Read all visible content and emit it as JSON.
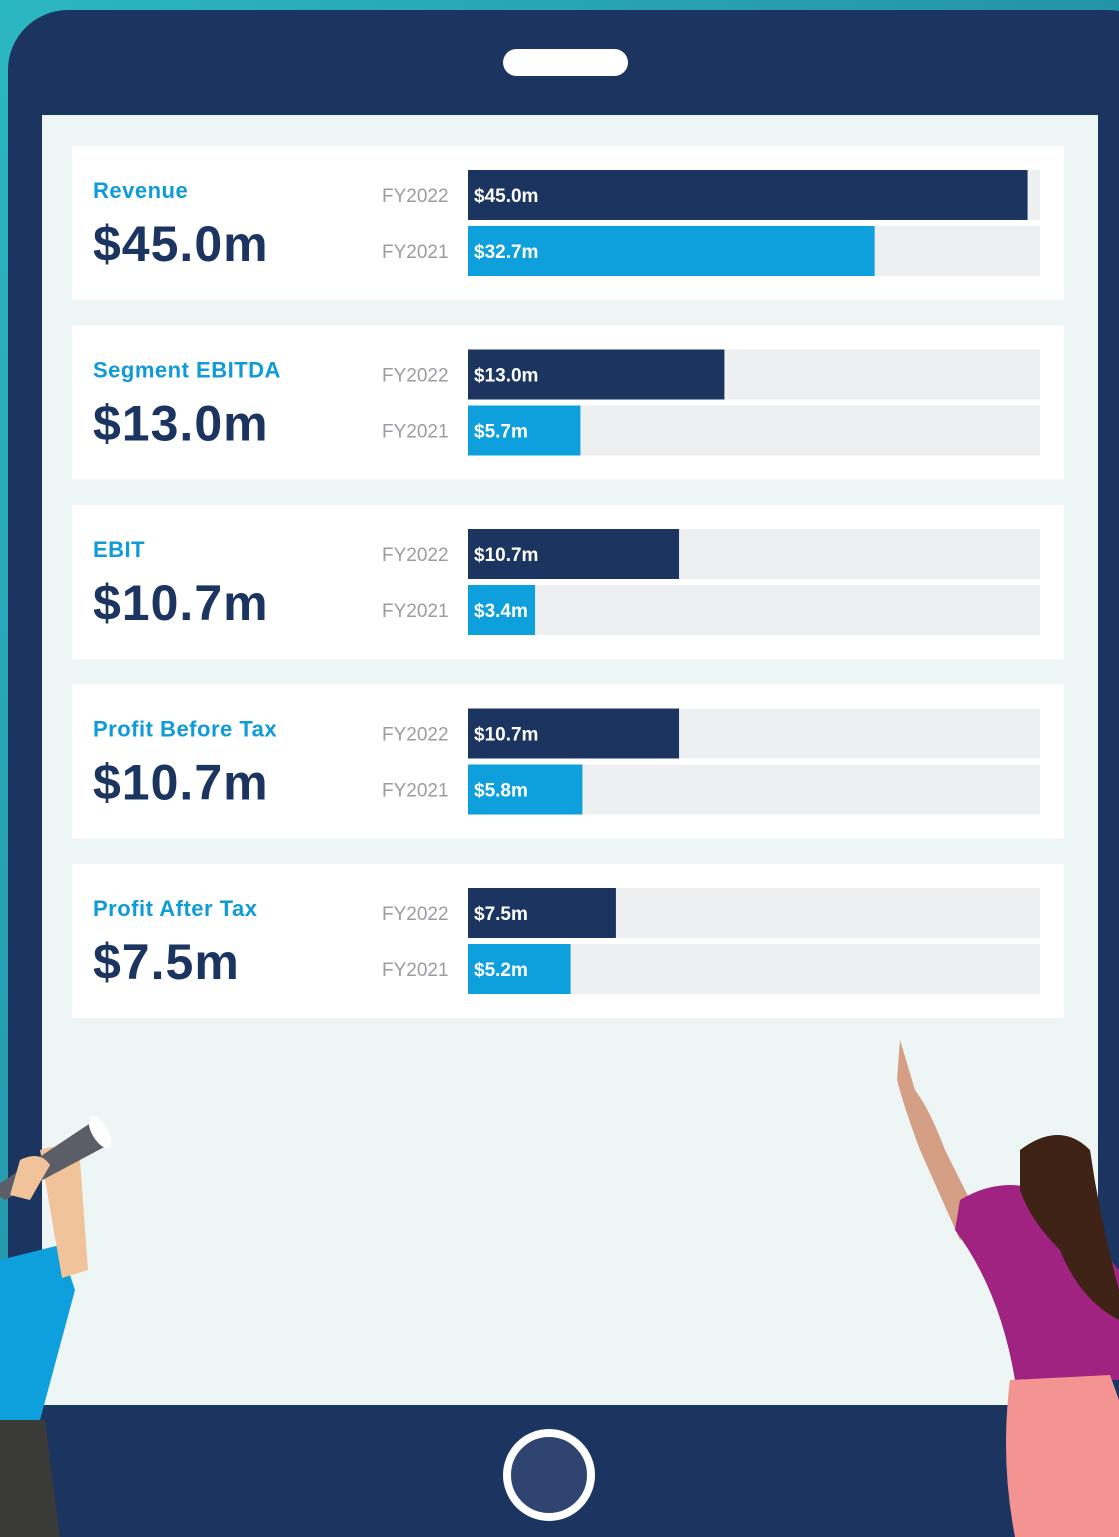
{
  "chart_data": [
    {
      "type": "bar",
      "title": "Revenue",
      "headline": "$45.0m",
      "categories": [
        "FY2022",
        "FY2021"
      ],
      "values": [
        45.0,
        32.7
      ],
      "value_labels": [
        "$45.0m",
        "$32.7m"
      ],
      "colors": [
        "#1b3460",
        "#0ea0dc"
      ],
      "xlim": [
        0,
        46
      ]
    },
    {
      "type": "bar",
      "title": "Segment EBITDA",
      "headline": "$13.0m",
      "categories": [
        "FY2022",
        "FY2021"
      ],
      "values": [
        13.0,
        5.7
      ],
      "value_labels": [
        "$13.0m",
        "$5.7m"
      ],
      "colors": [
        "#1b3460",
        "#0ea0dc"
      ],
      "xlim": [
        0,
        29
      ]
    },
    {
      "type": "bar",
      "title": "EBIT",
      "headline": "$10.7m",
      "categories": [
        "FY2022",
        "FY2021"
      ],
      "values": [
        10.7,
        3.4
      ],
      "value_labels": [
        "$10.7m",
        "$3.4m"
      ],
      "colors": [
        "#1b3460",
        "#0ea0dc"
      ],
      "xlim": [
        0,
        29
      ]
    },
    {
      "type": "bar",
      "title": "Profit Before Tax",
      "headline": "$10.7m",
      "categories": [
        "FY2022",
        "FY2021"
      ],
      "values": [
        10.7,
        5.8
      ],
      "value_labels": [
        "$10.7m",
        "$5.8m"
      ],
      "colors": [
        "#1b3460",
        "#0ea0dc"
      ],
      "xlim": [
        0,
        29
      ]
    },
    {
      "type": "bar",
      "title": "Profit After Tax",
      "headline": "$7.5m",
      "categories": [
        "FY2022",
        "FY2021"
      ],
      "values": [
        7.5,
        5.2
      ],
      "value_labels": [
        "$7.5m",
        "$5.2m"
      ],
      "colors": [
        "#1b3460",
        "#0ea0dc"
      ],
      "xlim": [
        0,
        29
      ]
    }
  ]
}
